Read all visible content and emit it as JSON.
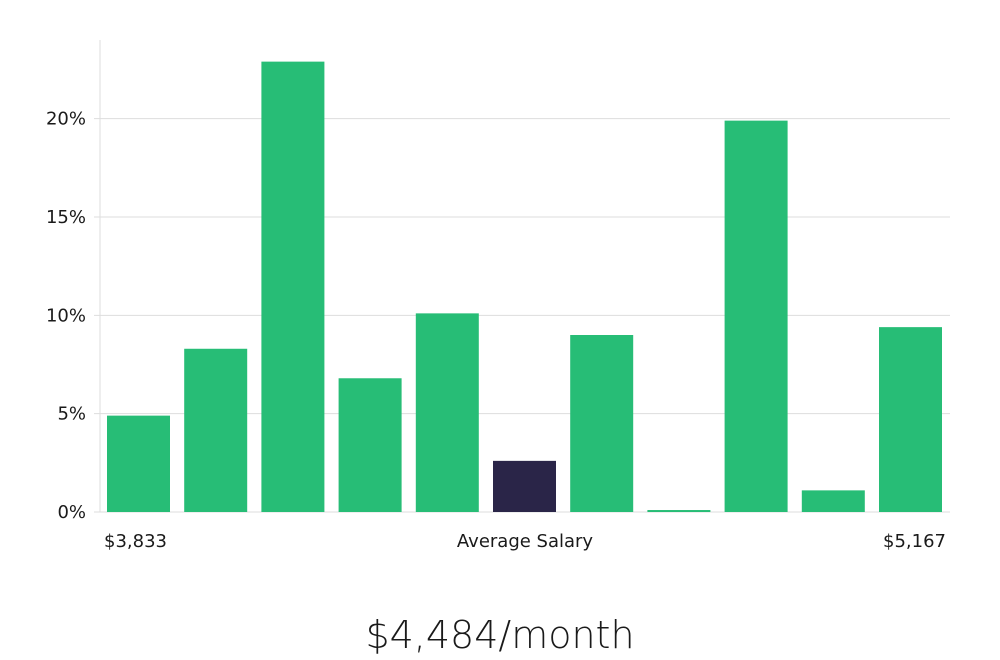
{
  "chart_data": {
    "type": "bar",
    "categories": [
      "",
      "",
      "",
      "",
      "",
      "",
      "",
      "",
      "",
      "",
      ""
    ],
    "values": [
      4.9,
      8.3,
      22.9,
      6.8,
      10.1,
      2.6,
      9.0,
      0.1,
      19.9,
      1.1,
      9.4
    ],
    "ylim": [
      0,
      24
    ],
    "yticks": [
      0,
      5,
      10,
      15,
      20
    ],
    "ytick_labels": [
      "0%",
      "5%",
      "10%",
      "15%",
      "20%"
    ],
    "highlight_index": 5,
    "xlabel": "Average Salary",
    "x_min_label": "$3,833",
    "x_max_label": "$5,167",
    "grid": true,
    "colors": {
      "bar": "#27bd76",
      "highlight": "#2a2548",
      "grid": "#dddddd",
      "axis": "#dddddd"
    }
  },
  "summary": {
    "average_salary_text": "$4,484/month"
  }
}
